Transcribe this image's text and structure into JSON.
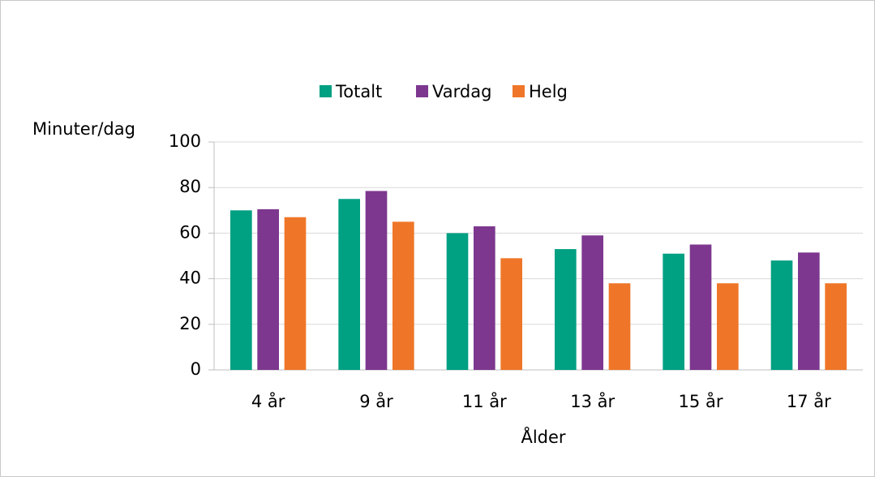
{
  "chart_data": {
    "type": "bar",
    "legend": "top",
    "y_label": "Minuter/dag",
    "x_label": "Ålder",
    "categories": [
      "4 år",
      "9 år",
      "11 år",
      "13 år",
      "15 år",
      "17 år"
    ],
    "series": [
      {
        "name": "Totalt",
        "color": "#00a083",
        "values": [
          70,
          75,
          60,
          53,
          51,
          48
        ]
      },
      {
        "name": "Vardag",
        "color": "#7d378f",
        "values": [
          70.5,
          78.5,
          63,
          59,
          55,
          51.5
        ]
      },
      {
        "name": "Helg",
        "color": "#ef7628",
        "values": [
          67,
          65,
          49,
          38,
          38,
          38
        ]
      }
    ],
    "ylim": [
      0,
      100
    ],
    "yticks": [
      0,
      20,
      40,
      60,
      80,
      100
    ],
    "grid": true
  }
}
